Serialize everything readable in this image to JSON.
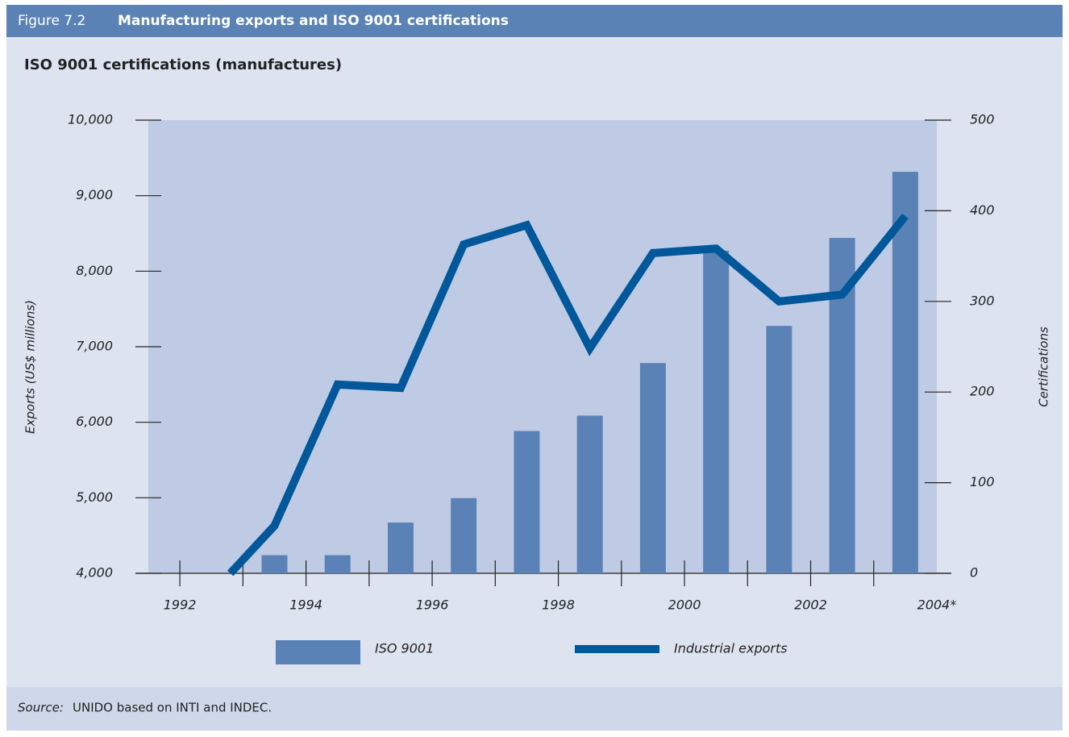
{
  "chart_data": {
    "type": "bar",
    "figure_label": "Figure 7.2",
    "title": "Manufacturing exports and ISO 9001 certifications",
    "subtitle": "ISO 9001 certifications (manufactures)",
    "ylabel": "Exports (US$ millions)",
    "y2label": "Certifications",
    "xlim": [
      1991.5,
      2004
    ],
    "xticks": [
      1992,
      1994,
      1996,
      1998,
      2000,
      2002,
      {
        "value": 2004,
        "label": "2004*"
      }
    ],
    "xminor_ticks": [
      1993,
      1995,
      1997,
      1999,
      2001,
      2003
    ],
    "ylim": [
      4000,
      10000
    ],
    "yticks": [
      {
        "value": 4000,
        "label": "4,000"
      },
      {
        "value": 5000,
        "label": "5,000"
      },
      {
        "value": 6000,
        "label": "6,000"
      },
      {
        "value": 7000,
        "label": "7,000"
      },
      {
        "value": 8000,
        "label": "8,000"
      },
      {
        "value": 9000,
        "label": "9,000"
      },
      {
        "value": 10000,
        "label": "10,000"
      }
    ],
    "y2lim": [
      0,
      500
    ],
    "y2ticks": [
      0,
      100,
      200,
      300,
      400,
      500
    ],
    "series": [
      {
        "name": "ISO 9001",
        "type": "bar",
        "axis": "y2",
        "color": "#5b82b6",
        "x": [
          1993.5,
          1994.5,
          1995.5,
          1996.5,
          1997.5,
          1998.5,
          1999.5,
          2000.5,
          2001.5,
          2002.5,
          2003.5
        ],
        "values": [
          20,
          20,
          56,
          83,
          157,
          174,
          232,
          356,
          273,
          370,
          443
        ]
      },
      {
        "name": "Industrial exports",
        "type": "line",
        "color": "#00589a",
        "x": [
          1992.8,
          1993.5,
          1994.5,
          1995.5,
          1996.5,
          1997.5,
          1998.5,
          1999.5,
          2000.5,
          2001.5,
          2002.5,
          2003.5
        ],
        "values": [
          4000,
          4630,
          6500,
          6455,
          8355,
          8610,
          6980,
          8240,
          8300,
          7600,
          7690,
          8730
        ]
      }
    ],
    "source_label": "Source:",
    "source": "UNIDO based on INTI and INDEC."
  }
}
